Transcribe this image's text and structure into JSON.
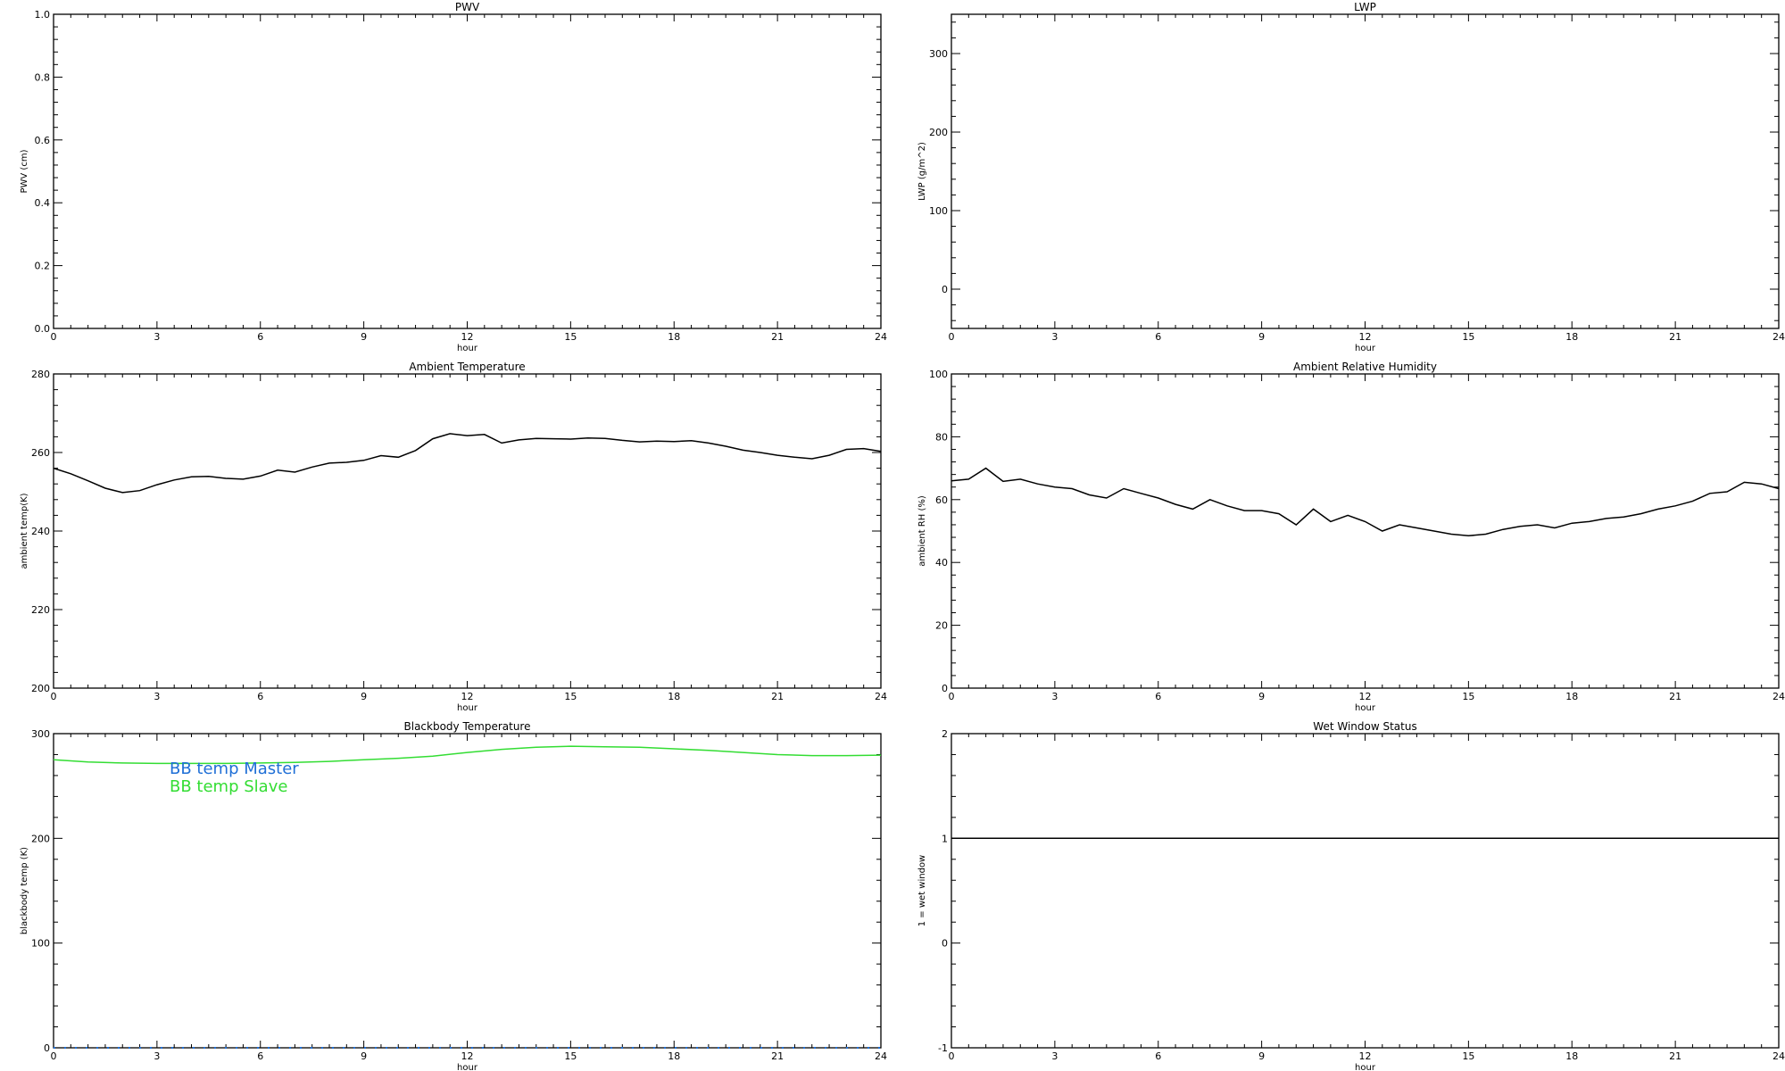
{
  "colors": {
    "line": "#000000",
    "master": "#1f6fd6",
    "slave": "#33dd33",
    "background": "#ffffff"
  },
  "chart_data": [
    {
      "id": "pwv",
      "type": "line",
      "title": "PWV",
      "xlabel": "hour",
      "ylabel": "PWV (cm)",
      "xlim": [
        0,
        24
      ],
      "ylim": [
        0,
        1
      ],
      "xticks": [
        0,
        3,
        6,
        9,
        12,
        15,
        18,
        21,
        24
      ],
      "xtick_labels": [
        "0",
        "3",
        "6",
        "9",
        "12",
        "15",
        "18",
        "21",
        "24"
      ],
      "yticks": [
        0,
        0.2,
        0.4,
        0.6,
        0.8,
        1.0
      ],
      "ytick_labels": [
        "0.0",
        "0.2",
        "0.4",
        "0.6",
        "0.8",
        "1.0"
      ],
      "grid": false,
      "series": []
    },
    {
      "id": "lwp",
      "type": "line",
      "title": "LWP",
      "xlabel": "hour",
      "ylabel": "LWP (g/m^2)",
      "xlim": [
        0,
        24
      ],
      "ylim": [
        -50,
        350
      ],
      "xticks": [
        0,
        3,
        6,
        9,
        12,
        15,
        18,
        21,
        24
      ],
      "xtick_labels": [
        "0",
        "3",
        "6",
        "9",
        "12",
        "15",
        "18",
        "21",
        "24"
      ],
      "yticks": [
        0,
        100,
        200,
        300
      ],
      "ytick_labels": [
        "0",
        "100",
        "200",
        "300"
      ],
      "grid": false,
      "series": []
    },
    {
      "id": "ambient-temperature",
      "type": "line",
      "title": "Ambient Temperature",
      "xlabel": "hour",
      "ylabel": "ambient temp(K)",
      "xlim": [
        0,
        24
      ],
      "ylim": [
        200,
        280
      ],
      "xticks": [
        0,
        3,
        6,
        9,
        12,
        15,
        18,
        21,
        24
      ],
      "xtick_labels": [
        "0",
        "3",
        "6",
        "9",
        "12",
        "15",
        "18",
        "21",
        "24"
      ],
      "yticks": [
        200,
        220,
        240,
        260,
        280
      ],
      "ytick_labels": [
        "200",
        "220",
        "240",
        "260",
        "280"
      ],
      "grid": false,
      "series": [
        {
          "color": "#000000",
          "x": [
            0,
            0.5,
            1,
            1.5,
            2,
            2.5,
            3,
            3.5,
            4,
            4.5,
            5,
            5.5,
            6,
            6.5,
            7,
            7.5,
            8,
            8.5,
            9,
            9.5,
            10,
            10.5,
            11,
            11.5,
            12,
            12.5,
            13,
            13.5,
            14,
            14.5,
            15,
            15.5,
            16,
            16.5,
            17,
            17.5,
            18,
            18.5,
            19,
            19.5,
            20,
            20.5,
            21,
            21.5,
            22,
            22.5,
            23,
            23.5,
            24
          ],
          "y": [
            256,
            254.6,
            252.8,
            250.9,
            249.8,
            250.3,
            251.8,
            253,
            253.8,
            253.9,
            253.4,
            253.2,
            254,
            255.5,
            255,
            256.3,
            257.3,
            257.5,
            258,
            259.2,
            258.8,
            260.5,
            263.5,
            264.8,
            264.3,
            264.6,
            262.4,
            263.2,
            263.6,
            263.5,
            263.4,
            263.7,
            263.6,
            263.1,
            262.7,
            262.9,
            262.8,
            263,
            262.4,
            261.6,
            260.6,
            260,
            259.3,
            258.8,
            258.4,
            259.3,
            260.8,
            261,
            260.3
          ]
        }
      ]
    },
    {
      "id": "ambient-relative-humidity",
      "type": "line",
      "title": "Ambient Relative Humidity",
      "xlabel": "hour",
      "ylabel": "ambient RH (%)",
      "xlim": [
        0,
        24
      ],
      "ylim": [
        0,
        100
      ],
      "xticks": [
        0,
        3,
        6,
        9,
        12,
        15,
        18,
        21,
        24
      ],
      "xtick_labels": [
        "0",
        "3",
        "6",
        "9",
        "12",
        "15",
        "18",
        "21",
        "24"
      ],
      "yticks": [
        0,
        20,
        40,
        60,
        80,
        100
      ],
      "ytick_labels": [
        "0",
        "20",
        "40",
        "60",
        "80",
        "100"
      ],
      "grid": false,
      "series": [
        {
          "color": "#000000",
          "x": [
            0,
            0.5,
            1,
            1.5,
            2,
            2.5,
            3,
            3.5,
            4,
            4.5,
            5,
            5.5,
            6,
            6.5,
            7,
            7.5,
            8,
            8.5,
            9,
            9.5,
            10,
            10.5,
            11,
            11.5,
            12,
            12.5,
            13,
            13.5,
            14,
            14.5,
            15,
            15.5,
            16,
            16.5,
            17,
            17.5,
            18,
            18.5,
            19,
            19.5,
            20,
            20.5,
            21,
            21.5,
            22,
            22.5,
            23,
            23.5,
            24
          ],
          "y": [
            66,
            66.5,
            70,
            65.8,
            66.5,
            65,
            64,
            63.5,
            61.5,
            60.5,
            63.5,
            62,
            60.5,
            58.5,
            57,
            60,
            58,
            56.5,
            56.5,
            55.5,
            52,
            57,
            53,
            55,
            53,
            50,
            52,
            51,
            50,
            49,
            48.5,
            49,
            50.5,
            51.5,
            52,
            51,
            52.5,
            53,
            54,
            54.5,
            55.5,
            57,
            58,
            59.5,
            62,
            62.5,
            65.5,
            65,
            63.5
          ]
        }
      ]
    },
    {
      "id": "blackbody-temperature",
      "type": "line",
      "title": "Blackbody Temperature",
      "xlabel": "hour",
      "ylabel": "blackbody temp (K)",
      "xlim": [
        0,
        24
      ],
      "ylim": [
        0,
        300
      ],
      "xticks": [
        0,
        3,
        6,
        9,
        12,
        15,
        18,
        21,
        24
      ],
      "xtick_labels": [
        "0",
        "3",
        "6",
        "9",
        "12",
        "15",
        "18",
        "21",
        "24"
      ],
      "yticks": [
        0,
        100,
        200,
        300
      ],
      "ytick_labels": [
        "0",
        "100",
        "200",
        "300"
      ],
      "grid": false,
      "legend": "upper-left",
      "series": [
        {
          "name": "BB temp Master",
          "color": "#1f6fd6",
          "dotted": true,
          "x": [
            0,
            24
          ],
          "y": [
            0,
            0
          ]
        },
        {
          "name": "BB temp Slave",
          "color": "#33dd33",
          "x": [
            0,
            1,
            2,
            3,
            4,
            5,
            6,
            7,
            8,
            9,
            10,
            11,
            12,
            13,
            14,
            15,
            16,
            17,
            18,
            19,
            20,
            21,
            22,
            23,
            24
          ],
          "y": [
            275,
            273,
            272,
            271.5,
            271.5,
            271.5,
            272,
            272.5,
            273.5,
            275,
            276.5,
            278.5,
            282,
            285,
            287,
            288,
            287.5,
            287,
            285.5,
            284,
            282,
            280,
            279,
            279,
            279.5
          ]
        }
      ]
    },
    {
      "id": "wet-window-status",
      "type": "line",
      "title": "Wet Window Status",
      "xlabel": "hour",
      "ylabel": "1 = wet window",
      "xlim": [
        0,
        24
      ],
      "ylim": [
        -1,
        2
      ],
      "xticks": [
        0,
        3,
        6,
        9,
        12,
        15,
        18,
        21,
        24
      ],
      "xtick_labels": [
        "0",
        "3",
        "6",
        "9",
        "12",
        "15",
        "18",
        "21",
        "24"
      ],
      "yticks": [
        -1,
        0,
        1,
        2
      ],
      "ytick_labels": [
        "-1",
        "0",
        "1",
        "2"
      ],
      "grid": false,
      "series": [
        {
          "color": "#000000",
          "x": [
            0,
            24
          ],
          "y": [
            1,
            1
          ]
        }
      ]
    }
  ]
}
